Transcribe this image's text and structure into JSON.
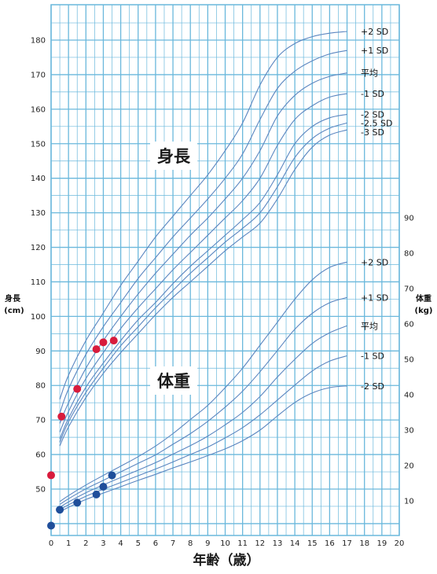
{
  "chart_data": {
    "type": "line",
    "x_title": "年齢（歳）",
    "x_ticks": [
      0,
      1,
      2,
      3,
      4,
      5,
      6,
      7,
      8,
      9,
      10,
      11,
      12,
      13,
      14,
      15,
      16,
      17,
      18,
      19,
      20
    ],
    "xlim": [
      0,
      20
    ],
    "grid": true,
    "height_panel": {
      "title": "身長",
      "axis_title": [
        "身長",
        "(cm)"
      ],
      "axis_side": "left",
      "ylim": [
        40,
        187
      ],
      "ticks": [
        50,
        60,
        70,
        80,
        90,
        100,
        110,
        120,
        130,
        140,
        150,
        160,
        170,
        180
      ],
      "x": [
        0,
        0.5,
        1,
        2,
        3,
        4,
        5,
        6,
        7,
        8,
        9,
        10,
        11,
        12,
        13,
        14,
        15,
        16,
        17
      ],
      "series": [
        {
          "name": "+2 SD",
          "values": [
            null,
            76,
            83,
            93,
            101,
            109,
            116,
            123,
            129,
            135,
            141,
            148,
            156,
            167,
            175,
            179,
            181,
            182,
            182.5
          ]
        },
        {
          "name": "+1 SD",
          "values": [
            null,
            72,
            79,
            89,
            97,
            104,
            111,
            117,
            123,
            128.5,
            134,
            140,
            147,
            157,
            166,
            171,
            174,
            176,
            177
          ]
        },
        {
          "name": "平均",
          "values": [
            null,
            69,
            75,
            85,
            93,
            100,
            106.5,
            112.5,
            118,
            123.5,
            128.5,
            134,
            140,
            148,
            158,
            164,
            167.5,
            169.5,
            170.5
          ]
        },
        {
          "name": "-1 SD",
          "values": [
            null,
            66.5,
            72.5,
            82,
            89.5,
            96.5,
            102.5,
            108,
            113.5,
            118.5,
            123.5,
            128.5,
            133.5,
            140,
            149.5,
            157,
            161,
            163.5,
            164.5
          ]
        },
        {
          "name": "-2 SD",
          "values": [
            null,
            64.5,
            70.5,
            79.5,
            86.5,
            93,
            99,
            104,
            109.5,
            114.5,
            119,
            123.5,
            128,
            133,
            141,
            150,
            155,
            157.5,
            158.5
          ]
        },
        {
          "name": "-2.5 SD",
          "values": [
            null,
            63.5,
            69.5,
            78,
            85,
            91.5,
            97,
            102.5,
            107.5,
            112.5,
            117,
            121.5,
            125.5,
            130,
            137.5,
            146,
            151.5,
            154.5,
            156
          ]
        },
        {
          "name": "-3 SD",
          "values": [
            null,
            62.5,
            68,
            76.5,
            83.5,
            89.5,
            95,
            100.5,
            105.5,
            110,
            114.5,
            119,
            123,
            127,
            134,
            142.5,
            149,
            152.5,
            154
          ]
        }
      ],
      "points": [
        {
          "x": 0,
          "y": 54
        },
        {
          "x": 0.6,
          "y": 71
        },
        {
          "x": 1.5,
          "y": 79
        },
        {
          "x": 2.6,
          "y": 90.5
        },
        {
          "x": 3.0,
          "y": 92.5
        },
        {
          "x": 3.6,
          "y": 93
        }
      ],
      "point_color": "#d81b3c"
    },
    "weight_panel": {
      "title": "体重",
      "axis_title": [
        "体重",
        "(kg)"
      ],
      "axis_side": "right",
      "ylim": [
        0,
        92
      ],
      "ticks": [
        10,
        20,
        30,
        40,
        50,
        60,
        70,
        80,
        90
      ],
      "x": [
        0,
        0.5,
        1,
        2,
        3,
        4,
        5,
        6,
        7,
        8,
        9,
        10,
        11,
        12,
        13,
        14,
        15,
        16,
        17
      ],
      "series": [
        {
          "name": "+2 SD",
          "values": [
            null,
            9.8,
            11.5,
            14.5,
            17.2,
            19.8,
            22.5,
            25.5,
            29,
            33,
            37,
            42,
            47.5,
            54,
            60.5,
            67,
            72.5,
            76,
            77.5
          ]
        },
        {
          "name": "+1 SD",
          "values": [
            null,
            9.0,
            10.6,
            13.4,
            15.8,
            18.2,
            20.6,
            23,
            26,
            29,
            32.5,
            36.5,
            41,
            46.5,
            52.5,
            58.5,
            63,
            66,
            67.5
          ]
        },
        {
          "name": "平均",
          "values": [
            null,
            8.2,
            9.7,
            12.3,
            14.5,
            16.6,
            18.7,
            20.8,
            23.2,
            25.6,
            28.3,
            31.5,
            35,
            39.5,
            45,
            50,
            54.5,
            57.5,
            59.5
          ]
        },
        {
          "name": "-1 SD",
          "values": [
            null,
            7.5,
            8.9,
            11.3,
            13.3,
            15.2,
            17.1,
            19,
            21,
            23.1,
            25.2,
            27.8,
            30.7,
            34.3,
            38.5,
            42.7,
            46.7,
            49.5,
            51
          ]
        },
        {
          "name": "-2 SD",
          "values": [
            null,
            6.9,
            8.2,
            10.4,
            12.2,
            14,
            15.8,
            17.5,
            19.3,
            21,
            22.8,
            24.7,
            27,
            30,
            34,
            37.8,
            40.5,
            42,
            42.5
          ]
        }
      ],
      "points": [
        {
          "x": 0,
          "y": 3
        },
        {
          "x": 0.5,
          "y": 7.5
        },
        {
          "x": 1.5,
          "y": 9.5
        },
        {
          "x": 2.6,
          "y": 11.8
        },
        {
          "x": 3.0,
          "y": 14.0
        },
        {
          "x": 3.5,
          "y": 17.2
        }
      ],
      "point_color": "#1f4e9a"
    },
    "colors": {
      "grid": "#6ab8dc",
      "grid_bg": "#ffffff",
      "curve": "#5b86c0"
    }
  }
}
